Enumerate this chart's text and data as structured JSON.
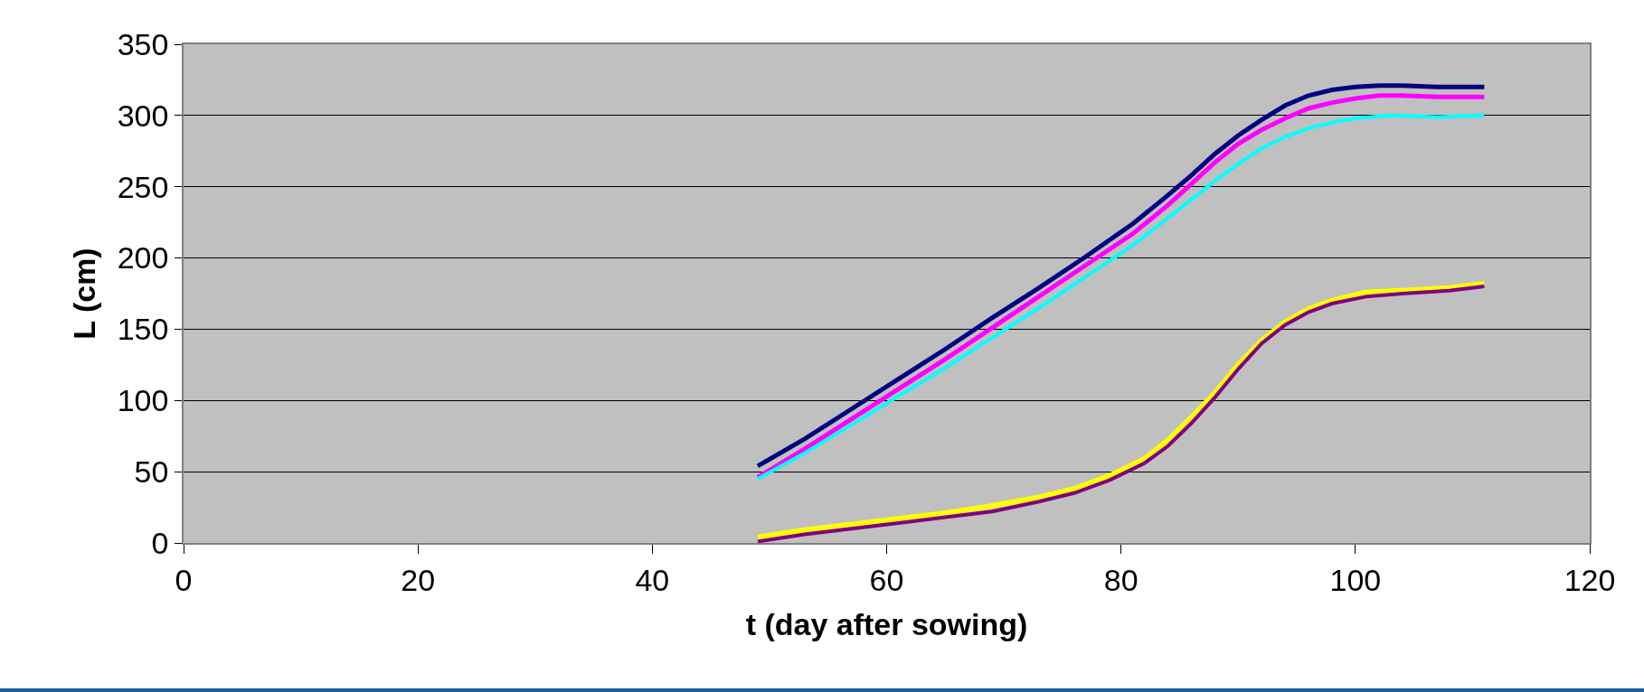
{
  "chart_data": {
    "type": "line",
    "xlabel": "t (day after sowing)",
    "ylabel": "L (cm)",
    "xlim": [
      0,
      120
    ],
    "xticks": [
      0,
      20,
      40,
      60,
      80,
      100,
      120
    ],
    "ylim": [
      0,
      350
    ],
    "yticks": [
      0,
      50,
      100,
      150,
      200,
      250,
      300,
      350
    ],
    "grid": "y",
    "marker": "none",
    "line_style": "solid",
    "series": [
      {
        "color": "#000080",
        "x": [
          49,
          53,
          57,
          61,
          65,
          69,
          73,
          77,
          81,
          84,
          86,
          88,
          90,
          92,
          94,
          96,
          98,
          100,
          102,
          104,
          107,
          111
        ],
        "values": [
          54,
          73,
          94,
          115,
          136,
          158,
          179,
          201,
          224,
          244,
          258,
          273,
          286,
          297,
          307,
          314,
          318,
          320,
          321,
          321,
          320,
          320
        ]
      },
      {
        "color": "#ff00ff",
        "x": [
          49,
          53,
          57,
          61,
          65,
          69,
          73,
          77,
          81,
          84,
          86,
          88,
          90,
          92,
          94,
          96,
          98,
          100,
          102,
          104,
          107,
          111
        ],
        "values": [
          46,
          66,
          87,
          108,
          129,
          151,
          173,
          195,
          217,
          237,
          252,
          267,
          280,
          290,
          298,
          305,
          309,
          312,
          314,
          314,
          313,
          313
        ]
      },
      {
        "color": "#00ffff",
        "x": [
          49,
          53,
          57,
          61,
          65,
          69,
          73,
          77,
          81,
          84,
          86,
          88,
          90,
          92,
          94,
          96,
          98,
          100,
          103,
          107,
          111
        ],
        "values": [
          45,
          63,
          83,
          103,
          123,
          144,
          165,
          187,
          209,
          228,
          241,
          254,
          266,
          277,
          285,
          291,
          295,
          298,
          300,
          299,
          300
        ]
      },
      {
        "color": "#ffff00",
        "x": [
          49,
          53,
          57,
          61,
          65,
          69,
          73,
          76,
          79,
          82,
          84,
          86,
          88,
          90,
          92,
          94,
          96,
          98,
          101,
          104,
          108,
          111
        ],
        "values": [
          4,
          9,
          13,
          17,
          21,
          26,
          32,
          38,
          47,
          59,
          72,
          88,
          105,
          125,
          142,
          155,
          164,
          170,
          176,
          177,
          179,
          182
        ]
      },
      {
        "color": "#800080",
        "x": [
          49,
          53,
          57,
          61,
          65,
          69,
          73,
          76,
          79,
          82,
          84,
          86,
          88,
          90,
          92,
          94,
          96,
          98,
          101,
          104,
          108,
          111
        ],
        "values": [
          1,
          6,
          10,
          14,
          18,
          22,
          29,
          35,
          44,
          56,
          68,
          84,
          102,
          122,
          140,
          153,
          162,
          168,
          173,
          175,
          177,
          180
        ]
      }
    ]
  }
}
